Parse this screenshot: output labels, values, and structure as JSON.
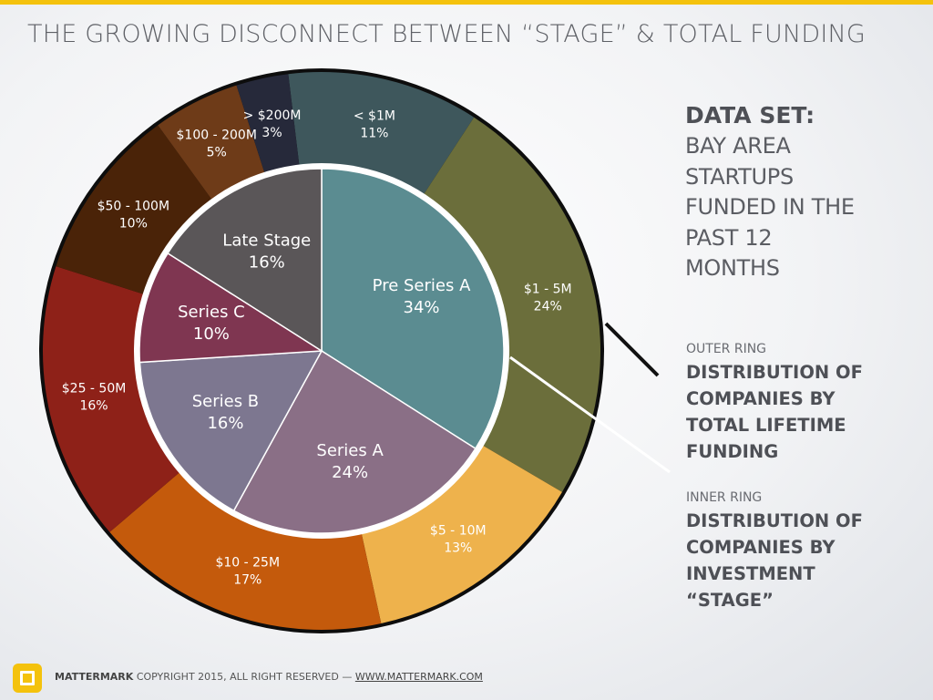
{
  "title": "THE GROWING DISCONNECT BETWEEN “STAGE” & TOTAL FUNDING",
  "data_set": {
    "heading": "DATA SET:",
    "lines": [
      "BAY AREA",
      "STARTUPS",
      "FUNDED IN THE",
      "PAST 12",
      "MONTHS"
    ]
  },
  "outer_ring": {
    "label": "OUTER RING",
    "description": [
      "DISTRIBUTION OF",
      "COMPANIES BY",
      "TOTAL LIFETIME",
      "FUNDING"
    ]
  },
  "inner_ring": {
    "label": "INNER RING",
    "description": [
      "DISTRIBUTION OF",
      "COMPANIES BY",
      "INVESTMENT",
      "“STAGE”"
    ]
  },
  "footer": {
    "brand": "MATTERMARK",
    "copyright": "COPYRIGHT 2015, ALL RIGHT RESERVED —",
    "link": "WWW.MATTERMARK.COM"
  },
  "colors": {
    "accent": "#f4c20d"
  },
  "chart_data": {
    "type": "pie",
    "subtype": "nested-donut",
    "rings": [
      {
        "ring": "outer",
        "slices": [
          {
            "label": "< $1M",
            "pct": "11%",
            "value": 11,
            "color": "#3e575c"
          },
          {
            "label": "$1 - 5M",
            "pct": "24%",
            "value": 24,
            "color": "#6b6e3b"
          },
          {
            "label": "$5 - 10M",
            "pct": "13%",
            "value": 13,
            "color": "#eeb24c"
          },
          {
            "label": "$10 - 25M",
            "pct": "17%",
            "value": 17,
            "color": "#c45a0c"
          },
          {
            "label": "$25 - 50M",
            "pct": "16%",
            "value": 16,
            "color": "#8e2118"
          },
          {
            "label": "$50 - 100M",
            "pct": "10%",
            "value": 10,
            "color": "#4a2308"
          },
          {
            "label": "$100 - 200M",
            "pct": "5%",
            "value": 5,
            "color": "#6e3b18"
          },
          {
            "label": "> $200M",
            "pct": "3%",
            "value": 3,
            "color": "#26293a"
          }
        ]
      },
      {
        "ring": "inner",
        "slices": [
          {
            "label": "Pre Series A",
            "pct": "34%",
            "value": 34,
            "color": "#5b8c91"
          },
          {
            "label": "Series A",
            "pct": "24%",
            "value": 24,
            "color": "#8a6f86"
          },
          {
            "label": "Series B",
            "pct": "16%",
            "value": 16,
            "color": "#7d7790"
          },
          {
            "label": "Series C",
            "pct": "10%",
            "value": 10,
            "color": "#7f3651"
          },
          {
            "label": "Late Stage",
            "pct": "16%",
            "value": 16,
            "color": "#5a5658"
          }
        ]
      }
    ]
  }
}
